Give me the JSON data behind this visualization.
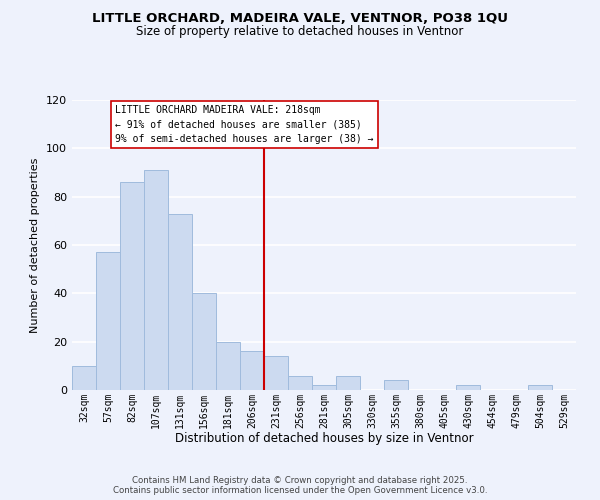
{
  "title": "LITTLE ORCHARD, MADEIRA VALE, VENTNOR, PO38 1QU",
  "subtitle": "Size of property relative to detached houses in Ventnor",
  "xlabel": "Distribution of detached houses by size in Ventnor",
  "ylabel": "Number of detached properties",
  "bar_color": "#ccdaf0",
  "bar_edge_color": "#a0bbdd",
  "categories": [
    "32sqm",
    "57sqm",
    "82sqm",
    "107sqm",
    "131sqm",
    "156sqm",
    "181sqm",
    "206sqm",
    "231sqm",
    "256sqm",
    "281sqm",
    "305sqm",
    "330sqm",
    "355sqm",
    "380sqm",
    "405sqm",
    "430sqm",
    "454sqm",
    "479sqm",
    "504sqm",
    "529sqm"
  ],
  "values": [
    10,
    57,
    86,
    91,
    73,
    40,
    20,
    16,
    14,
    6,
    2,
    6,
    0,
    4,
    0,
    0,
    2,
    0,
    0,
    2,
    0
  ],
  "ylim": [
    0,
    120
  ],
  "yticks": [
    0,
    20,
    40,
    60,
    80,
    100,
    120
  ],
  "vline_x": 7.5,
  "vline_color": "#cc0000",
  "annotation_title": "LITTLE ORCHARD MADEIRA VALE: 218sqm",
  "annotation_line1": "← 91% of detached houses are smaller (385)",
  "annotation_line2": "9% of semi-detached houses are larger (38) →",
  "footer1": "Contains HM Land Registry data © Crown copyright and database right 2025.",
  "footer2": "Contains public sector information licensed under the Open Government Licence v3.0.",
  "background_color": "#eef2fc",
  "grid_color": "#ffffff",
  "ann_box_edge": "#cc0000"
}
